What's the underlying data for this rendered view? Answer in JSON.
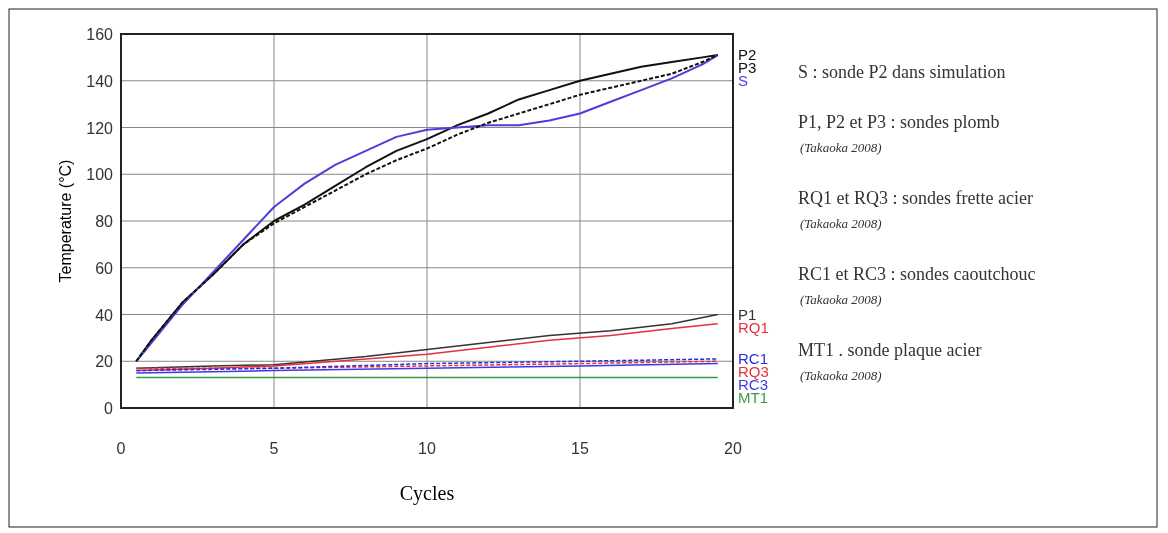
{
  "chart_data": {
    "type": "line",
    "xlabel": "Cycles",
    "ylabel": "Temperature (°C)",
    "xlim": [
      0,
      20
    ],
    "ylim": [
      0,
      160
    ],
    "xticks": [
      0,
      5,
      10,
      15,
      20
    ],
    "yticks": [
      0,
      20,
      40,
      60,
      80,
      100,
      120,
      140,
      160
    ],
    "grid": true,
    "series": [
      {
        "name": "P2",
        "color": "#111111",
        "line_style": "solid",
        "x": [
          0.5,
          1,
          2,
          3,
          4,
          5,
          6,
          7,
          8,
          9,
          10,
          11,
          12,
          13,
          14,
          15,
          16,
          17,
          18,
          19,
          19.5
        ],
        "values": [
          20,
          29,
          45,
          57,
          70,
          80,
          87,
          95,
          103,
          110,
          115,
          121,
          126,
          132,
          136,
          140,
          143,
          146,
          148,
          150,
          151
        ]
      },
      {
        "name": "P3",
        "color": "#111111",
        "line_style": "dashed",
        "x": [
          0.5,
          1,
          2,
          3,
          4,
          5,
          6,
          7,
          8,
          9,
          10,
          11,
          12,
          13,
          14,
          15,
          16,
          17,
          18,
          19,
          19.5
        ],
        "values": [
          20,
          29,
          45,
          57,
          70,
          79,
          86,
          93,
          100,
          106,
          111,
          117,
          122,
          126,
          130,
          134,
          137,
          140,
          143,
          148,
          151
        ]
      },
      {
        "name": "S",
        "color": "#4a3fd8",
        "line_style": "solid",
        "x": [
          0.5,
          1,
          2,
          3,
          4,
          5,
          6,
          7,
          8,
          9,
          10,
          11,
          12,
          13,
          14,
          15,
          16,
          17,
          18,
          19,
          19.5
        ],
        "values": [
          20,
          28,
          44,
          58,
          72,
          86,
          96,
          104,
          110,
          116,
          119,
          120,
          121,
          121,
          123,
          126,
          131,
          136,
          141,
          147,
          151
        ]
      },
      {
        "name": "P1",
        "color": "#333333",
        "line_style": "solid",
        "x": [
          0.5,
          3,
          5,
          8,
          10,
          12,
          14,
          16,
          18,
          19.5
        ],
        "values": [
          17,
          18,
          18.5,
          22,
          25,
          28,
          31,
          33,
          36,
          40
        ]
      },
      {
        "name": "RQ1",
        "color": "#e8303a",
        "line_style": "solid",
        "x": [
          0.5,
          3,
          5,
          8,
          10,
          12,
          14,
          16,
          18,
          19.5
        ],
        "values": [
          16,
          17,
          18,
          21,
          23,
          26,
          29,
          31,
          34,
          36
        ]
      },
      {
        "name": "RQ3",
        "color": "#e8303a",
        "line_style": "dashed",
        "x": [
          0.5,
          5,
          10,
          15,
          19.5
        ],
        "values": [
          17,
          17,
          18,
          19,
          20
        ]
      },
      {
        "name": "RC1",
        "color": "#2a2ae0",
        "line_style": "dashed",
        "x": [
          0.5,
          5,
          10,
          15,
          19.5
        ],
        "values": [
          16,
          17,
          19,
          20,
          21
        ]
      },
      {
        "name": "RC3",
        "color": "#3a3ae8",
        "line_style": "solid",
        "x": [
          0.5,
          5,
          10,
          15,
          19.5
        ],
        "values": [
          15,
          16,
          17,
          18,
          19
        ]
      },
      {
        "name": "MT1",
        "color": "#3a9a4a",
        "line_style": "solid",
        "x": [
          0.5,
          5,
          10,
          15,
          19.5
        ],
        "values": [
          13,
          13,
          13,
          13,
          13
        ]
      }
    ],
    "annotations": [
      "S : sonde P2 dans simulation",
      "P1, P2 et P3 : sondes plomb",
      "(Takaoka 2008)",
      "RQ1 et RQ3 : sondes frette acier",
      "(Takaoka 2008)",
      "RC1 et RC3 : sondes caoutchouc",
      "(Takaoka 2008)",
      "MT1 . sonde plaque acier",
      "(Takaoka 2008)"
    ]
  }
}
